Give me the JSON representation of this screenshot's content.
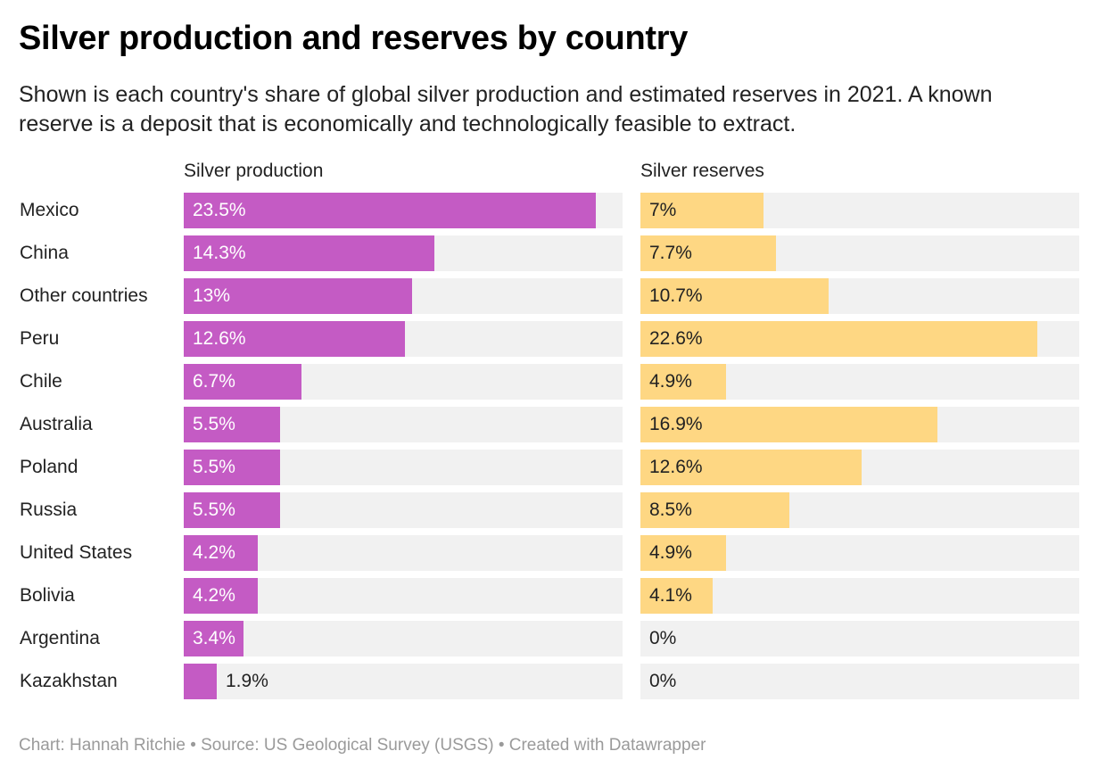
{
  "title": "Silver production and reserves by country",
  "subtitle": "Shown is each country's share of global silver production and estimated reserves in 2021. A known reserve is a deposit that is economically and technologically feasible to extract.",
  "footer": "Chart: Hannah Ritchie • Source: US Geological Survey (USGS) • Created with Datawrapper",
  "colors": {
    "production": "#c45bc4",
    "reserves": "#fed783",
    "track": "#f1f1f1"
  },
  "chart_data": [
    {
      "type": "bar",
      "orientation": "horizontal",
      "title": "Silver production",
      "unit": "%",
      "xlim": [
        0,
        23.5
      ],
      "categories": [
        "Mexico",
        "China",
        "Other countries",
        "Peru",
        "Chile",
        "Australia",
        "Poland",
        "Russia",
        "United States",
        "Bolivia",
        "Argentina",
        "Kazakhstan"
      ],
      "values": [
        23.5,
        14.3,
        13,
        12.6,
        6.7,
        5.5,
        5.5,
        5.5,
        4.2,
        4.2,
        3.4,
        1.9
      ],
      "labels": [
        "23.5%",
        "14.3%",
        "13%",
        "12.6%",
        "6.7%",
        "5.5%",
        "5.5%",
        "5.5%",
        "4.2%",
        "4.2%",
        "3.4%",
        "1.9%"
      ],
      "grid": false,
      "legend": "none"
    },
    {
      "type": "bar",
      "orientation": "horizontal",
      "title": "Silver reserves",
      "unit": "%",
      "xlim": [
        0,
        25
      ],
      "categories": [
        "Mexico",
        "China",
        "Other countries",
        "Peru",
        "Chile",
        "Australia",
        "Poland",
        "Russia",
        "United States",
        "Bolivia",
        "Argentina",
        "Kazakhstan"
      ],
      "values": [
        7,
        7.7,
        10.7,
        22.6,
        4.9,
        16.9,
        12.6,
        8.5,
        4.9,
        4.1,
        0,
        0
      ],
      "labels": [
        "7%",
        "7.7%",
        "10.7%",
        "22.6%",
        "4.9%",
        "16.9%",
        "12.6%",
        "8.5%",
        "4.9%",
        "4.1%",
        "0%",
        "0%"
      ],
      "grid": false,
      "legend": "none"
    }
  ]
}
